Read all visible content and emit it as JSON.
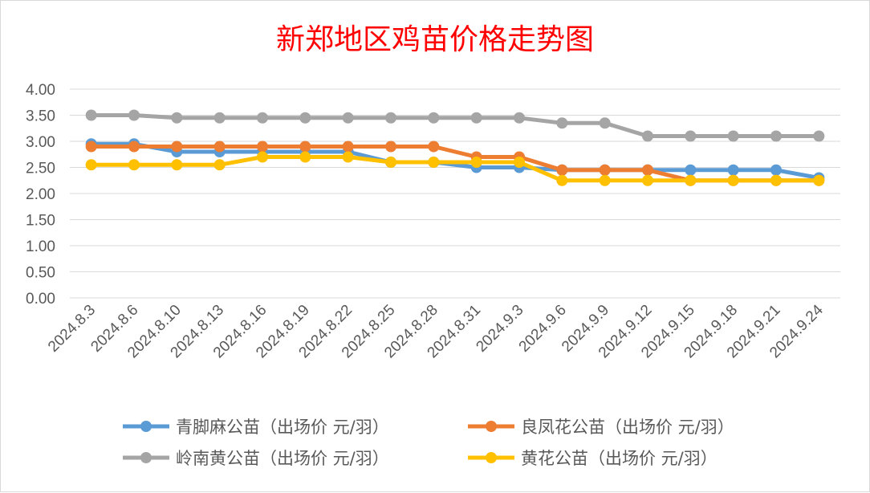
{
  "chart_data": {
    "type": "line",
    "title": "新郑地区鸡苗价格走势图",
    "xlabel": "",
    "ylabel": "",
    "ylim": [
      0,
      4
    ],
    "yticks": [
      "0.00",
      "0.50",
      "1.00",
      "1.50",
      "2.00",
      "2.50",
      "3.00",
      "3.50",
      "4.00"
    ],
    "grid": true,
    "legend_position": "bottom",
    "categories": [
      "2024.8.3",
      "2024.8.6",
      "2024.8.10",
      "2024.8.13",
      "2024.8.16",
      "2024.8.19",
      "2024.8.22",
      "2024.8.25",
      "2024.8.28",
      "2024.8.31",
      "2024.9.3",
      "2024.9.6",
      "2024.9.9",
      "2024.9.12",
      "2024.9.15",
      "2024.9.18",
      "2024.9.21",
      "2024.9.24"
    ],
    "series": [
      {
        "name": "青脚麻公苗（出场价 元/羽）",
        "color": "#5b9bd5",
        "values": [
          2.95,
          2.95,
          2.8,
          2.8,
          2.8,
          2.8,
          2.8,
          2.6,
          2.6,
          2.5,
          2.5,
          2.45,
          2.45,
          2.45,
          2.45,
          2.45,
          2.45,
          2.3
        ]
      },
      {
        "name": "良凤花公苗（出场价 元/羽）",
        "color": "#ed7d31",
        "values": [
          2.9,
          2.9,
          2.9,
          2.9,
          2.9,
          2.9,
          2.9,
          2.9,
          2.9,
          2.7,
          2.7,
          2.45,
          2.45,
          2.45,
          2.25,
          2.25,
          2.25,
          2.25
        ]
      },
      {
        "name": "岭南黄公苗（出场价 元/羽）",
        "color": "#a5a5a5",
        "values": [
          3.5,
          3.5,
          3.45,
          3.45,
          3.45,
          3.45,
          3.45,
          3.45,
          3.45,
          3.45,
          3.45,
          3.35,
          3.35,
          3.1,
          3.1,
          3.1,
          3.1,
          3.1
        ]
      },
      {
        "name": "黄花公苗（出场价 元/羽）",
        "color": "#ffc000",
        "values": [
          2.55,
          2.55,
          2.55,
          2.55,
          2.7,
          2.7,
          2.7,
          2.6,
          2.6,
          2.6,
          2.6,
          2.25,
          2.25,
          2.25,
          2.25,
          2.25,
          2.25,
          2.25
        ]
      }
    ]
  }
}
